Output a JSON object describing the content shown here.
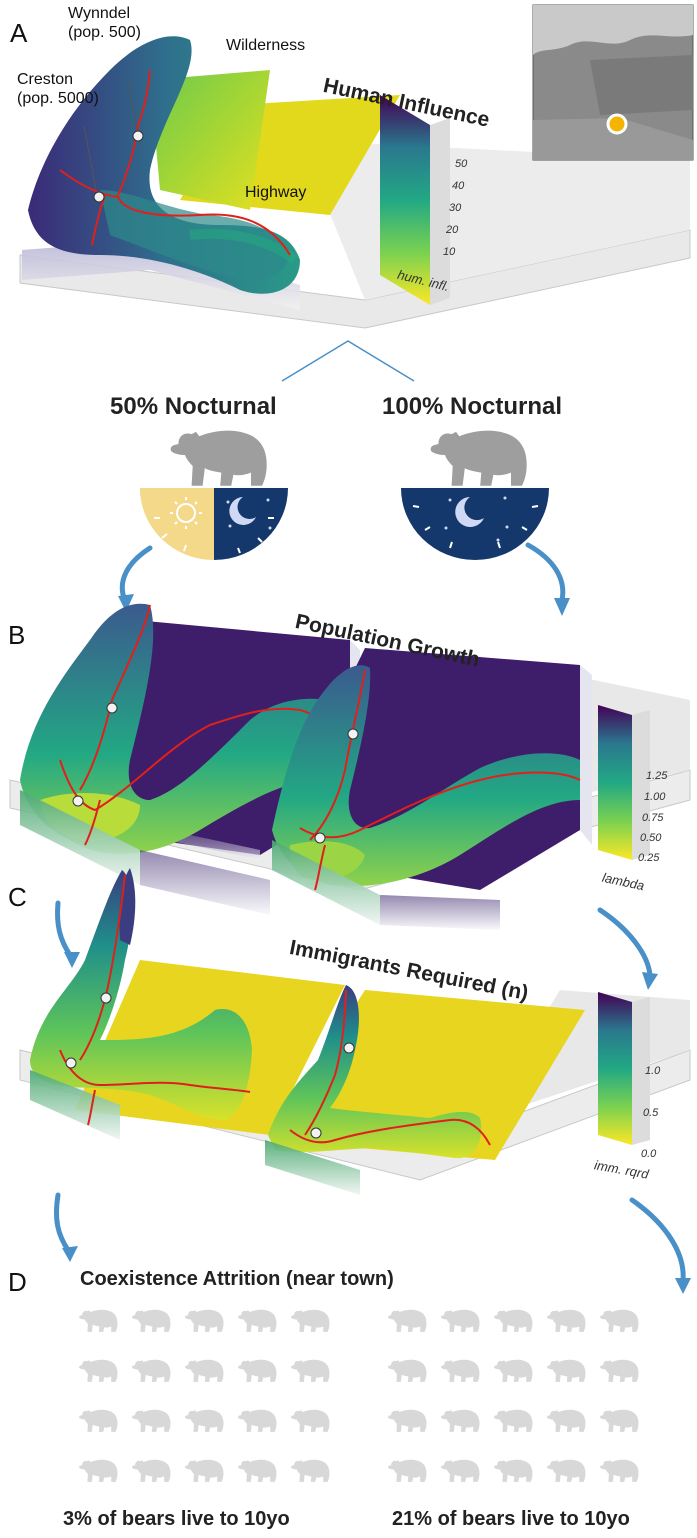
{
  "panel_letters": {
    "a": "A",
    "b": "B",
    "c": "C",
    "d": "D"
  },
  "panel_a": {
    "labels": {
      "wynndel": "Wynndel",
      "wynndel_pop": "(pop. 500)",
      "creston": "Creston",
      "creston_pop": "(pop. 5000)",
      "wilderness": "Wilderness",
      "highway": "Highway"
    },
    "title": "Human Influence",
    "legend": {
      "ticks": [
        "50",
        "40",
        "30",
        "20",
        "10"
      ],
      "caption": "hum. infl."
    }
  },
  "modes": {
    "left": "50% Nocturnal",
    "right": "100% Nocturnal"
  },
  "panel_b": {
    "title": "Population Growth",
    "legend": {
      "ticks": [
        "1.25",
        "1.00",
        "0.75",
        "0.50",
        "0.25"
      ],
      "caption": "lambda"
    }
  },
  "panel_c": {
    "title": "Immigrants Required (n)",
    "legend": {
      "ticks": [
        "1.0",
        "0.5",
        "0.0"
      ],
      "caption": "imm. rqrd"
    }
  },
  "panel_d": {
    "title": "Coexistence Attrition (near town)",
    "left": {
      "caption": "3% of bears live to 10yo",
      "surviving_fraction": 0.03,
      "total_bears": 20
    },
    "right": {
      "caption": "21% of bears live to 10yo",
      "surviving_fraction": 0.21,
      "total_bears": 20
    }
  },
  "colors": {
    "viridis_dark": "#440154",
    "viridis_blue": "#2a788e",
    "viridis_green": "#22a884",
    "viridis_lime": "#7ad151",
    "viridis_yellow": "#fde725",
    "highway_red": "#e0201b",
    "bear_grey": "#9e9e9e",
    "bear_light": "#d8d8d8",
    "bear_dark": "#111111",
    "day_yellow": "#f4d98a",
    "night_navy": "#14386b",
    "arrow_blue": "#4a90c8"
  }
}
